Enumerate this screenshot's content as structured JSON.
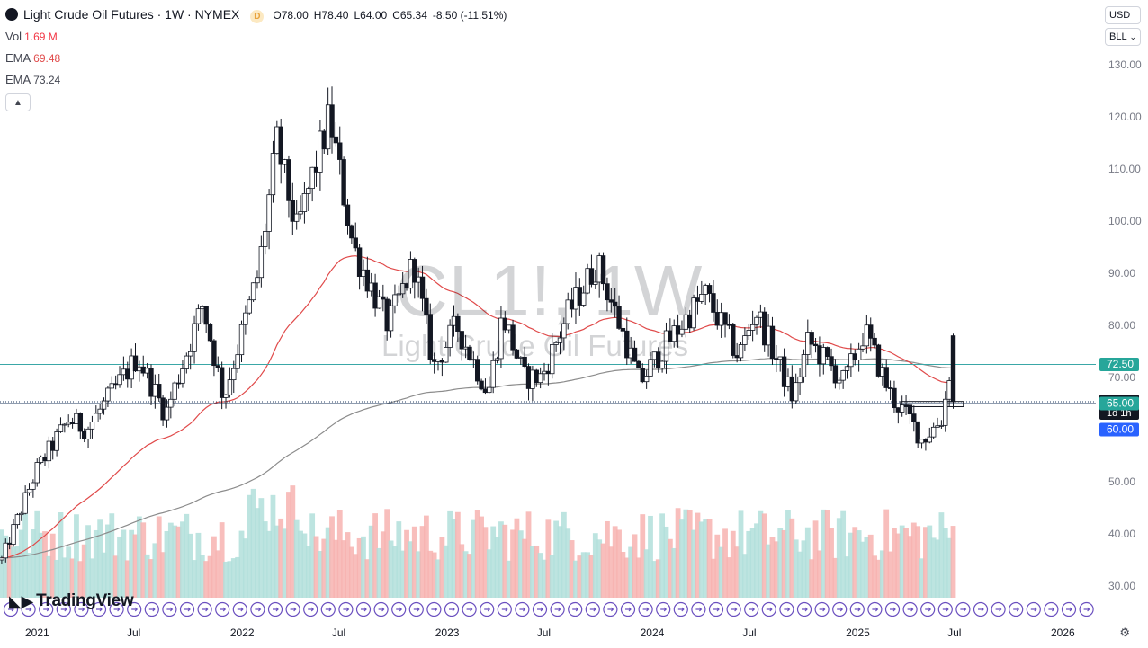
{
  "header": {
    "title": "Light Crude Oil Futures · 1W · NYMEX",
    "badge": "D",
    "open_label": "O",
    "open": "78.00",
    "high_label": "H",
    "high": "78.40",
    "low_label": "L",
    "low": "64.00",
    "close_label": "C",
    "close": "65.34",
    "change": "-8.50 (-11.51%)"
  },
  "indicators": [
    {
      "name": "Vol",
      "value": "1.69 M",
      "color": "#f23645"
    },
    {
      "name": "EMA",
      "value": "69.48",
      "color": "#e04a4a"
    },
    {
      "name": "EMA",
      "value": "73.24",
      "color": "#787b86"
    }
  ],
  "controls": {
    "currency": "USD",
    "unit": "BLL",
    "collapse_icon": "chevron-up-icon"
  },
  "watermark": {
    "symbol": "CL1!, 1W",
    "name": "Light Crude Oil Futures"
  },
  "logo": {
    "text": "TradingView",
    "icon": "tradingview-logo-icon"
  },
  "colors": {
    "up": "#131722",
    "down": "#131722",
    "vol_up": "#b2dfdb",
    "vol_down": "#f7b3b0",
    "ema_fast": "#e04a4a",
    "ema_slow": "#8c8c8c",
    "line_teal": "#3aa7a7",
    "line_dark": "#1f3a5f"
  },
  "chart_data": {
    "type": "candlestick",
    "y_axis": {
      "ticks": [
        130,
        120,
        110,
        100,
        90,
        80,
        70,
        60,
        50,
        40,
        30
      ],
      "tick_labels": [
        "130.00",
        "120.00",
        "110.00",
        "100.00",
        "90.00",
        "80.00",
        "70.00",
        "60.00",
        "50.00",
        "40.00",
        "30.00"
      ],
      "range": [
        28,
        134
      ]
    },
    "x_axis": {
      "tick_labels": [
        "2021",
        "Jul",
        "2022",
        "Jul",
        "2023",
        "Jul",
        "2024",
        "Jul",
        "2025",
        "Jul",
        "2026"
      ],
      "tick_dates": [
        "2021-01-01",
        "2021-07-01",
        "2022-01-01",
        "2022-07-01",
        "2023-01-01",
        "2023-07-01",
        "2024-01-01",
        "2024-07-01",
        "2025-01-01",
        "2025-07-01",
        "2026-01-01"
      ]
    },
    "price_anchors": [
      [
        "2020-11-01",
        35
      ],
      [
        "2021-01-01",
        52
      ],
      [
        "2021-03-01",
        62
      ],
      [
        "2021-04-01",
        60
      ],
      [
        "2021-07-01",
        74
      ],
      [
        "2021-08-20",
        63
      ],
      [
        "2021-10-25",
        84
      ],
      [
        "2021-12-01",
        66
      ],
      [
        "2022-02-01",
        90
      ],
      [
        "2022-03-06",
        115
      ],
      [
        "2022-04-10",
        98
      ],
      [
        "2022-06-08",
        120
      ],
      [
        "2022-07-20",
        95
      ],
      [
        "2022-09-20",
        80
      ],
      [
        "2022-11-05",
        92
      ],
      [
        "2022-12-10",
        72
      ],
      [
        "2023-01-20",
        80
      ],
      [
        "2023-03-17",
        67
      ],
      [
        "2023-04-12",
        82
      ],
      [
        "2023-05-20",
        70
      ],
      [
        "2023-06-20",
        70
      ],
      [
        "2023-08-05",
        82
      ],
      [
        "2023-09-27",
        92
      ],
      [
        "2023-11-20",
        76
      ],
      [
        "2023-12-12",
        69
      ],
      [
        "2024-01-25",
        76
      ],
      [
        "2024-04-06",
        86
      ],
      [
        "2024-06-05",
        74
      ],
      [
        "2024-07-05",
        83
      ],
      [
        "2024-09-10",
        66
      ],
      [
        "2024-10-07",
        77
      ],
      [
        "2024-12-10",
        69
      ],
      [
        "2025-01-15",
        79
      ],
      [
        "2025-03-05",
        66
      ],
      [
        "2025-04-06",
        62
      ],
      [
        "2025-04-28",
        58
      ],
      [
        "2025-06-01",
        62
      ],
      [
        "2025-06-12",
        68
      ],
      [
        "2025-06-20",
        76
      ]
    ],
    "last_candle": {
      "open": 78.0,
      "high": 78.4,
      "low": 64.0,
      "close": 65.34
    },
    "horizontal_lines": [
      {
        "value": 72.5,
        "label": "72.50",
        "style": "solid",
        "color": "#3aa7a7"
      },
      {
        "value": 65.0,
        "label": "65.00",
        "style": "solid",
        "color": "#1f3a5f"
      },
      {
        "value": 65.34,
        "label": "65.34",
        "style": "dotted",
        "color": "#1f3a5f"
      }
    ],
    "price_labels": [
      {
        "text": "72.50",
        "value": 72.5,
        "bg": "#26a69a"
      },
      {
        "text": "65.34",
        "value": 65.34,
        "bg": "#131722",
        "sub": "1d 1h"
      },
      {
        "text": "65.00",
        "value": 65.0,
        "bg": "#26a69a"
      },
      {
        "text": "60.00",
        "value": 60.0,
        "bg": "#2962ff"
      }
    ],
    "rectangle": {
      "x_start": "2025-03-20",
      "x_end": "2025-07-10",
      "y_low": 64.4,
      "y_high": 65.4
    }
  }
}
